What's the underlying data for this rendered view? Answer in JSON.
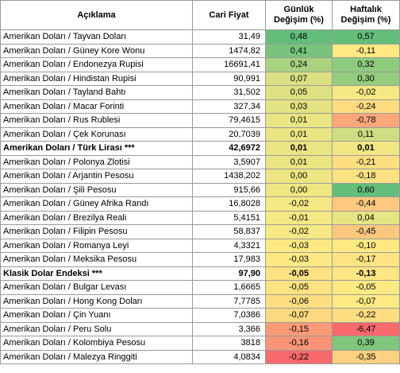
{
  "headers": {
    "name": "Açıklama",
    "price": "Cari Fiyat",
    "daily_line1": "Günlük",
    "daily_line2": "Değişim (%)",
    "weekly_line1": "Haftalık",
    "weekly_line2": "Değişim (%)"
  },
  "rows": [
    {
      "name": "Amerikan Doları / Tayvan Doları",
      "price": "31,49",
      "daily": "0,48",
      "weekly": "0,57",
      "daily_color": "#63be7b",
      "weekly_color": "#63be7b",
      "bold": false
    },
    {
      "name": "Amerikan Doları / Güney Kore Wonu",
      "price": "1474,82",
      "daily": "0,41",
      "weekly": "-0,11",
      "daily_color": "#78c47c",
      "weekly_color": "#fee983",
      "bold": false
    },
    {
      "name": "Amerikan Doları / Endonezya Rupisi",
      "price": "16691,41",
      "daily": "0,24",
      "weekly": "0,32",
      "daily_color": "#a8d27f",
      "weekly_color": "#8dcb7e",
      "bold": false
    },
    {
      "name": "Amerikan Doları / Hindistan Rupisi",
      "price": "90,991",
      "daily": "0,07",
      "weekly": "0,30",
      "daily_color": "#d9e082",
      "weekly_color": "#93cc7e",
      "bold": false
    },
    {
      "name": "Amerikan Doları / Tayland Bahtı",
      "price": "31,502",
      "daily": "0,05",
      "weekly": "-0,02",
      "daily_color": "#dee182",
      "weekly_color": "#f6e884",
      "bold": false
    },
    {
      "name": "Amerikan Doları / Macar Forinti",
      "price": "327,34",
      "daily": "0,03",
      "weekly": "-0,24",
      "daily_color": "#e4e383",
      "weekly_color": "#fddc81",
      "bold": false
    },
    {
      "name": "Amerikan Doları / Rus Rublesi",
      "price": "79,4615",
      "daily": "0,01",
      "weekly": "-0,78",
      "daily_color": "#eae583",
      "weekly_color": "#fba77a",
      "bold": false
    },
    {
      "name": "Amerikan Doları / Çek Korunası",
      "price": "20,7039",
      "daily": "0,01",
      "weekly": "0,11",
      "daily_color": "#eae583",
      "weekly_color": "#cfdd82",
      "bold": false
    },
    {
      "name": "Amerikan Doları / Türk Lirası ***",
      "price": "42,6972",
      "daily": "0,01",
      "weekly": "0,01",
      "daily_color": "#eae583",
      "weekly_color": "#f0e784",
      "bold": true
    },
    {
      "name": "Amerikan Doları / Polonya Zlotisi",
      "price": "3,5907",
      "daily": "0,01",
      "weekly": "-0,21",
      "daily_color": "#eae583",
      "weekly_color": "#fddf82",
      "bold": false
    },
    {
      "name": "Amerikan Doları / Arjantin Pesosu",
      "price": "1438,202",
      "daily": "0,00",
      "weekly": "-0,18",
      "daily_color": "#eee683",
      "weekly_color": "#fee282",
      "bold": false
    },
    {
      "name": "Amerikan Doları / Şili Pesosu",
      "price": "915,66",
      "daily": "0,00",
      "weekly": "0,60",
      "daily_color": "#eee683",
      "weekly_color": "#63be7b",
      "bold": false
    },
    {
      "name": "Amerikan Doları / Güney Afrika Randı",
      "price": "16,8028",
      "daily": "-0,02",
      "weekly": "-0,44",
      "daily_color": "#f6e884",
      "weekly_color": "#fcc97e",
      "bold": false
    },
    {
      "name": "Amerikan Doları / Brezilya Reali",
      "price": "5,4151",
      "daily": "-0,01",
      "weekly": "0,04",
      "daily_color": "#f4e884",
      "weekly_color": "#e7e483",
      "bold": false
    },
    {
      "name": "Amerikan Doları / Filipin Pesosu",
      "price": "58,837",
      "daily": "-0,02",
      "weekly": "-0,45",
      "daily_color": "#f6e884",
      "weekly_color": "#fcc87e",
      "bold": false
    },
    {
      "name": "Amerikan Doları / Romanya Leyi",
      "price": "4,3321",
      "daily": "-0,03",
      "weekly": "-0,10",
      "daily_color": "#fde983",
      "weekly_color": "#fee983",
      "bold": false
    },
    {
      "name": "Amerikan Doları / Meksika Pesosu",
      "price": "17,983",
      "daily": "-0,03",
      "weekly": "-0,17",
      "daily_color": "#fde983",
      "weekly_color": "#fee382",
      "bold": false
    },
    {
      "name": "Klasik Dolar Endeksi ***",
      "price": "97,90",
      "daily": "-0,05",
      "weekly": "-0,13",
      "daily_color": "#fde282",
      "weekly_color": "#fee683",
      "bold": true
    },
    {
      "name": "Amerikan Doları / Bulgar Levası",
      "price": "1,6665",
      "daily": "-0,05",
      "weekly": "-0,05",
      "daily_color": "#fde282",
      "weekly_color": "#fcea84",
      "bold": false
    },
    {
      "name": "Amerikan Doları / Hong Kong Doları",
      "price": "7,7785",
      "daily": "-0,06",
      "weekly": "-0,07",
      "daily_color": "#fddf82",
      "weekly_color": "#fdea84",
      "bold": false
    },
    {
      "name": "Amerikan Doları / Çin Yuanı",
      "price": "7,0386",
      "daily": "-0,07",
      "weekly": "-0,22",
      "daily_color": "#fcd980",
      "weekly_color": "#fddd81",
      "bold": false
    },
    {
      "name": "Amerikan Doları / Peru Solu",
      "price": "3,366",
      "daily": "-0,15",
      "weekly": "-6,47",
      "daily_color": "#fa9a77",
      "weekly_color": "#f8696b",
      "bold": false
    },
    {
      "name": "Amerikan Doları / Kolombiya Pesosu",
      "price": "3818",
      "daily": "-0,16",
      "weekly": "0,39",
      "daily_color": "#f99476",
      "weekly_color": "#80c67d",
      "bold": false
    },
    {
      "name": "Amerikan Doları / Malezya Ringgiti",
      "price": "4,0834",
      "daily": "-0,22",
      "weekly": "-0,35",
      "daily_color": "#f8696b",
      "weekly_color": "#fcd17f",
      "bold": false
    }
  ]
}
